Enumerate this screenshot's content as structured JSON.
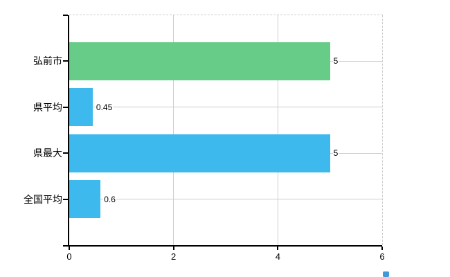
{
  "chart_data": {
    "type": "bar",
    "orientation": "horizontal",
    "title": "",
    "categories": [
      "弘前市",
      "県平均",
      "県最大",
      "全国平均"
    ],
    "values": [
      5,
      0.45,
      5,
      0.6
    ],
    "value_labels": [
      "5",
      "0.45",
      "5",
      "0.6"
    ],
    "series": [
      {
        "name": "",
        "values": [
          5,
          0.45,
          5,
          0.6
        ]
      }
    ],
    "bar_colors": [
      "#66cc88",
      "#3db9ee",
      "#3db9ee",
      "#3db9ee"
    ],
    "highlighted_category": "弘前市",
    "xlabel": "",
    "ylabel": "",
    "xlim": [
      0,
      6
    ],
    "x_tick_values": [
      0,
      2,
      4,
      6
    ],
    "x_tick_labels": [
      "0",
      "2",
      "4",
      "6"
    ],
    "grid": true,
    "legend_position": "none"
  },
  "colors": {
    "highlight_bar": "#66cc88",
    "default_bar": "#3db9ee",
    "gridline": "#cccccc",
    "dashed_border": "#cccccc",
    "axis": "#000000",
    "text": "#000000",
    "background": "#ffffff",
    "corner_artifact": "#1e88d2"
  }
}
